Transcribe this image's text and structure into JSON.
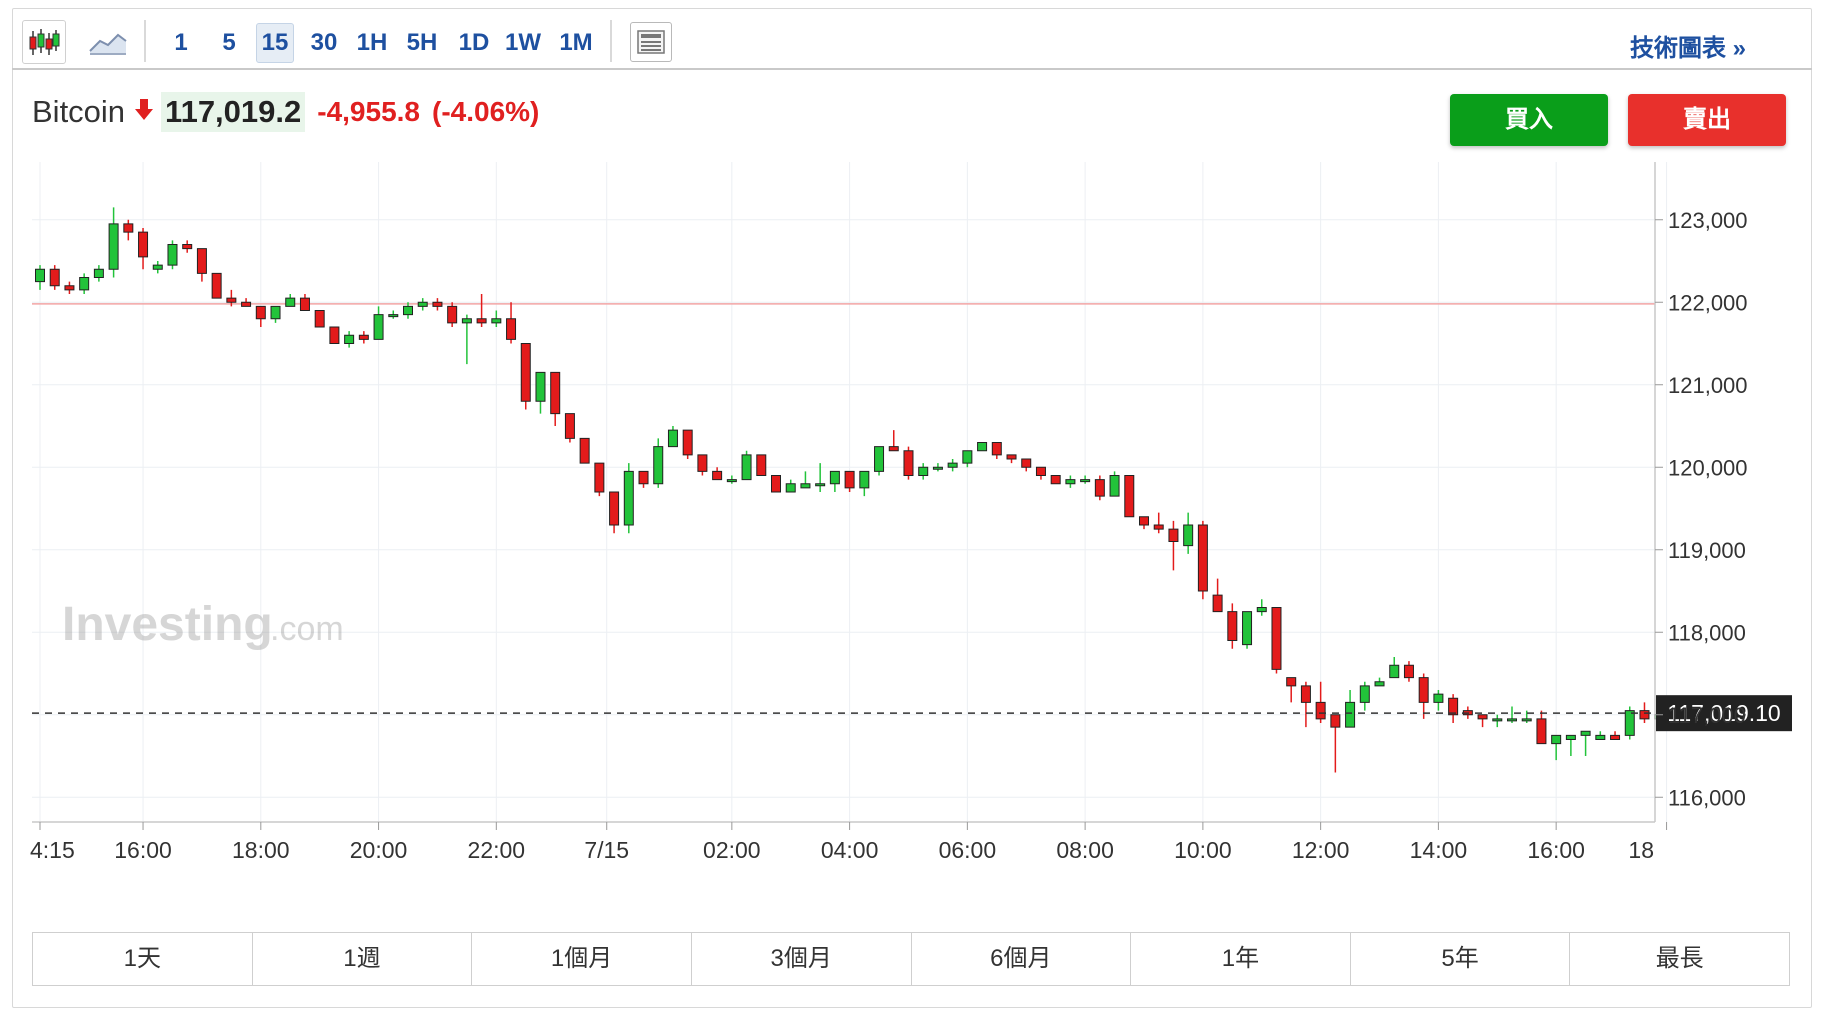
{
  "toolbar": {
    "intervals": [
      "1",
      "5",
      "15",
      "30",
      "1H",
      "5H",
      "1D",
      "1W",
      "1M"
    ],
    "active_interval": "15",
    "tech_link": "技術圖表 »"
  },
  "quote": {
    "name": "Bitcoin",
    "price": "117,019.2",
    "change": "-4,955.8",
    "change_pct": "(-4.06%)"
  },
  "buttons": {
    "buy": "買入",
    "sell": "賣出"
  },
  "ranges": [
    "1天",
    "1週",
    "1個月",
    "3個月",
    "6個月",
    "1年",
    "5年",
    "最長"
  ],
  "watermark": {
    "main": "Investing",
    "suffix": ".com"
  },
  "colors": {
    "up": "#22c33a",
    "down": "#e31b1b",
    "accent": "#1e50a0",
    "ref_line": "#f2a5a5"
  },
  "icons": [
    "candlestick-chart-icon",
    "area-chart-icon",
    "layout-icon",
    "down-arrow-icon"
  ],
  "chart_data": {
    "type": "candlestick",
    "ylim": [
      115700,
      123700
    ],
    "y_ticks": [
      116000,
      117000,
      118000,
      119000,
      120000,
      121000,
      122000,
      123000
    ],
    "y_tick_labels": [
      "116,000",
      "117,000",
      "118,000",
      "119,000",
      "120,000",
      "121,000",
      "122,000",
      "123,000"
    ],
    "x_ticks": [
      {
        "label": "4:15",
        "idx": 0
      },
      {
        "label": "16:00",
        "idx": 7
      },
      {
        "label": "18:00",
        "idx": 15
      },
      {
        "label": "20:00",
        "idx": 23
      },
      {
        "label": "22:00",
        "idx": 31
      },
      {
        "label": "7/15",
        "idx": 38.5
      },
      {
        "label": "02:00",
        "idx": 47
      },
      {
        "label": "04:00",
        "idx": 55
      },
      {
        "label": "06:00",
        "idx": 63
      },
      {
        "label": "08:00",
        "idx": 71
      },
      {
        "label": "10:00",
        "idx": 79
      },
      {
        "label": "12:00",
        "idx": 87
      },
      {
        "label": "14:00",
        "idx": 95
      },
      {
        "label": "16:00",
        "idx": 103
      },
      {
        "label": "18",
        "idx": 110.5
      }
    ],
    "reference_line": 121980,
    "last_price": 117019.1,
    "last_price_label": "117,019.10",
    "candles": [
      [
        122250,
        122450,
        122150,
        122400
      ],
      [
        122400,
        122450,
        122150,
        122200
      ],
      [
        122200,
        122250,
        122100,
        122150
      ],
      [
        122150,
        122350,
        122100,
        122300
      ],
      [
        122300,
        122450,
        122250,
        122400
      ],
      [
        122400,
        123150,
        122300,
        122950
      ],
      [
        122950,
        123000,
        122750,
        122850
      ],
      [
        122850,
        122900,
        122400,
        122550
      ],
      [
        122400,
        122500,
        122350,
        122450
      ],
      [
        122450,
        122750,
        122400,
        122700
      ],
      [
        122700,
        122750,
        122600,
        122650
      ],
      [
        122650,
        122650,
        122250,
        122350
      ],
      [
        122350,
        122350,
        122050,
        122050
      ],
      [
        122050,
        122150,
        121950,
        122000
      ],
      [
        122000,
        122050,
        121950,
        121950
      ],
      [
        121950,
        121950,
        121700,
        121800
      ],
      [
        121800,
        121950,
        121750,
        121950
      ],
      [
        121950,
        122100,
        121950,
        122050
      ],
      [
        122050,
        122100,
        121950,
        121900
      ],
      [
        121900,
        121900,
        121700,
        121700
      ],
      [
        121700,
        121700,
        121500,
        121500
      ],
      [
        121500,
        121650,
        121450,
        121600
      ],
      [
        121600,
        121650,
        121500,
        121550
      ],
      [
        121550,
        121950,
        121550,
        121850
      ],
      [
        121850,
        121900,
        121800,
        121850
      ],
      [
        121850,
        122000,
        121800,
        121950
      ],
      [
        121950,
        122050,
        121900,
        122000
      ],
      [
        122000,
        122050,
        121900,
        121950
      ],
      [
        121950,
        122000,
        121700,
        121750
      ],
      [
        121750,
        121850,
        121250,
        121800
      ],
      [
        121800,
        122100,
        121700,
        121750
      ],
      [
        121750,
        121900,
        121700,
        121800
      ],
      [
        121800,
        122000,
        121500,
        121550
      ],
      [
        121500,
        121500,
        120700,
        120800
      ],
      [
        120800,
        121150,
        120650,
        121150
      ],
      [
        121150,
        121150,
        120500,
        120650
      ],
      [
        120650,
        120650,
        120300,
        120350
      ],
      [
        120350,
        120350,
        120050,
        120050
      ],
      [
        120050,
        120050,
        119650,
        119700
      ],
      [
        119700,
        119700,
        119200,
        119300
      ],
      [
        119300,
        120050,
        119200,
        119950
      ],
      [
        119950,
        119950,
        119750,
        119800
      ],
      [
        119800,
        120350,
        119750,
        120250
      ],
      [
        120250,
        120500,
        120250,
        120450
      ],
      [
        120450,
        120450,
        120100,
        120150
      ],
      [
        120150,
        120150,
        119900,
        119950
      ],
      [
        119950,
        120000,
        119850,
        119850
      ],
      [
        119850,
        119900,
        119800,
        119850
      ],
      [
        119850,
        120200,
        119850,
        120150
      ],
      [
        120150,
        120150,
        119900,
        119900
      ],
      [
        119900,
        119900,
        119700,
        119700
      ],
      [
        119700,
        119850,
        119700,
        119800
      ],
      [
        119750,
        119950,
        119750,
        119800
      ],
      [
        119800,
        120050,
        119700,
        119800
      ],
      [
        119800,
        119950,
        119700,
        119950
      ],
      [
        119950,
        119950,
        119700,
        119750
      ],
      [
        119750,
        119950,
        119650,
        119950
      ],
      [
        119950,
        120250,
        119900,
        120250
      ],
      [
        120250,
        120450,
        120200,
        120200
      ],
      [
        120200,
        120250,
        119850,
        119900
      ],
      [
        119900,
        120050,
        119850,
        120000
      ],
      [
        120000,
        120050,
        119950,
        120000
      ],
      [
        120000,
        120100,
        119950,
        120050
      ],
      [
        120050,
        120200,
        120000,
        120200
      ],
      [
        120200,
        120300,
        120200,
        120300
      ],
      [
        120300,
        120300,
        120100,
        120150
      ],
      [
        120150,
        120150,
        120050,
        120100
      ],
      [
        120100,
        120100,
        119950,
        120000
      ],
      [
        120000,
        120000,
        119850,
        119900
      ],
      [
        119900,
        119900,
        119800,
        119800
      ],
      [
        119800,
        119900,
        119750,
        119850
      ],
      [
        119850,
        119900,
        119800,
        119850
      ],
      [
        119850,
        119900,
        119600,
        119650
      ],
      [
        119650,
        119950,
        119650,
        119900
      ],
      [
        119900,
        119900,
        119450,
        119400
      ],
      [
        119400,
        119400,
        119250,
        119300
      ],
      [
        119300,
        119450,
        119200,
        119250
      ],
      [
        119250,
        119350,
        118750,
        119100
      ],
      [
        119050,
        119450,
        118950,
        119300
      ],
      [
        119300,
        119350,
        118400,
        118500
      ],
      [
        118450,
        118650,
        118250,
        118250
      ],
      [
        118250,
        118350,
        117800,
        117900
      ],
      [
        117850,
        118250,
        117800,
        118250
      ],
      [
        118250,
        118400,
        118200,
        118300
      ],
      [
        118300,
        118300,
        117500,
        117550
      ],
      [
        117450,
        117450,
        117150,
        117350
      ],
      [
        117350,
        117400,
        116850,
        117150
      ],
      [
        117150,
        117400,
        116900,
        116950
      ],
      [
        117000,
        117000,
        116300,
        116850
      ],
      [
        116850,
        117300,
        116850,
        117150
      ],
      [
        117150,
        117400,
        117050,
        117350
      ],
      [
        117350,
        117450,
        117350,
        117400
      ],
      [
        117450,
        117700,
        117450,
        117600
      ],
      [
        117600,
        117650,
        117400,
        117450
      ],
      [
        117450,
        117500,
        116950,
        117150
      ],
      [
        117150,
        117300,
        117050,
        117250
      ],
      [
        117200,
        117250,
        116900,
        117000
      ],
      [
        117050,
        117100,
        116950,
        117000
      ],
      [
        117000,
        117000,
        116850,
        116950
      ],
      [
        116950,
        117000,
        116850,
        116950
      ],
      [
        116950,
        117100,
        116900,
        116950
      ],
      [
        116950,
        117050,
        116900,
        116950
      ],
      [
        116950,
        117050,
        116650,
        116650
      ],
      [
        116650,
        116700,
        116450,
        116750
      ],
      [
        116700,
        116750,
        116500,
        116750
      ],
      [
        116750,
        116800,
        116500,
        116800
      ],
      [
        116700,
        116800,
        116700,
        116750
      ],
      [
        116750,
        116800,
        116700,
        116700
      ],
      [
        116750,
        117100,
        116700,
        117050
      ],
      [
        117050,
        117150,
        116900,
        116950
      ],
      [
        116950,
        117050,
        116900,
        117000
      ]
    ]
  }
}
